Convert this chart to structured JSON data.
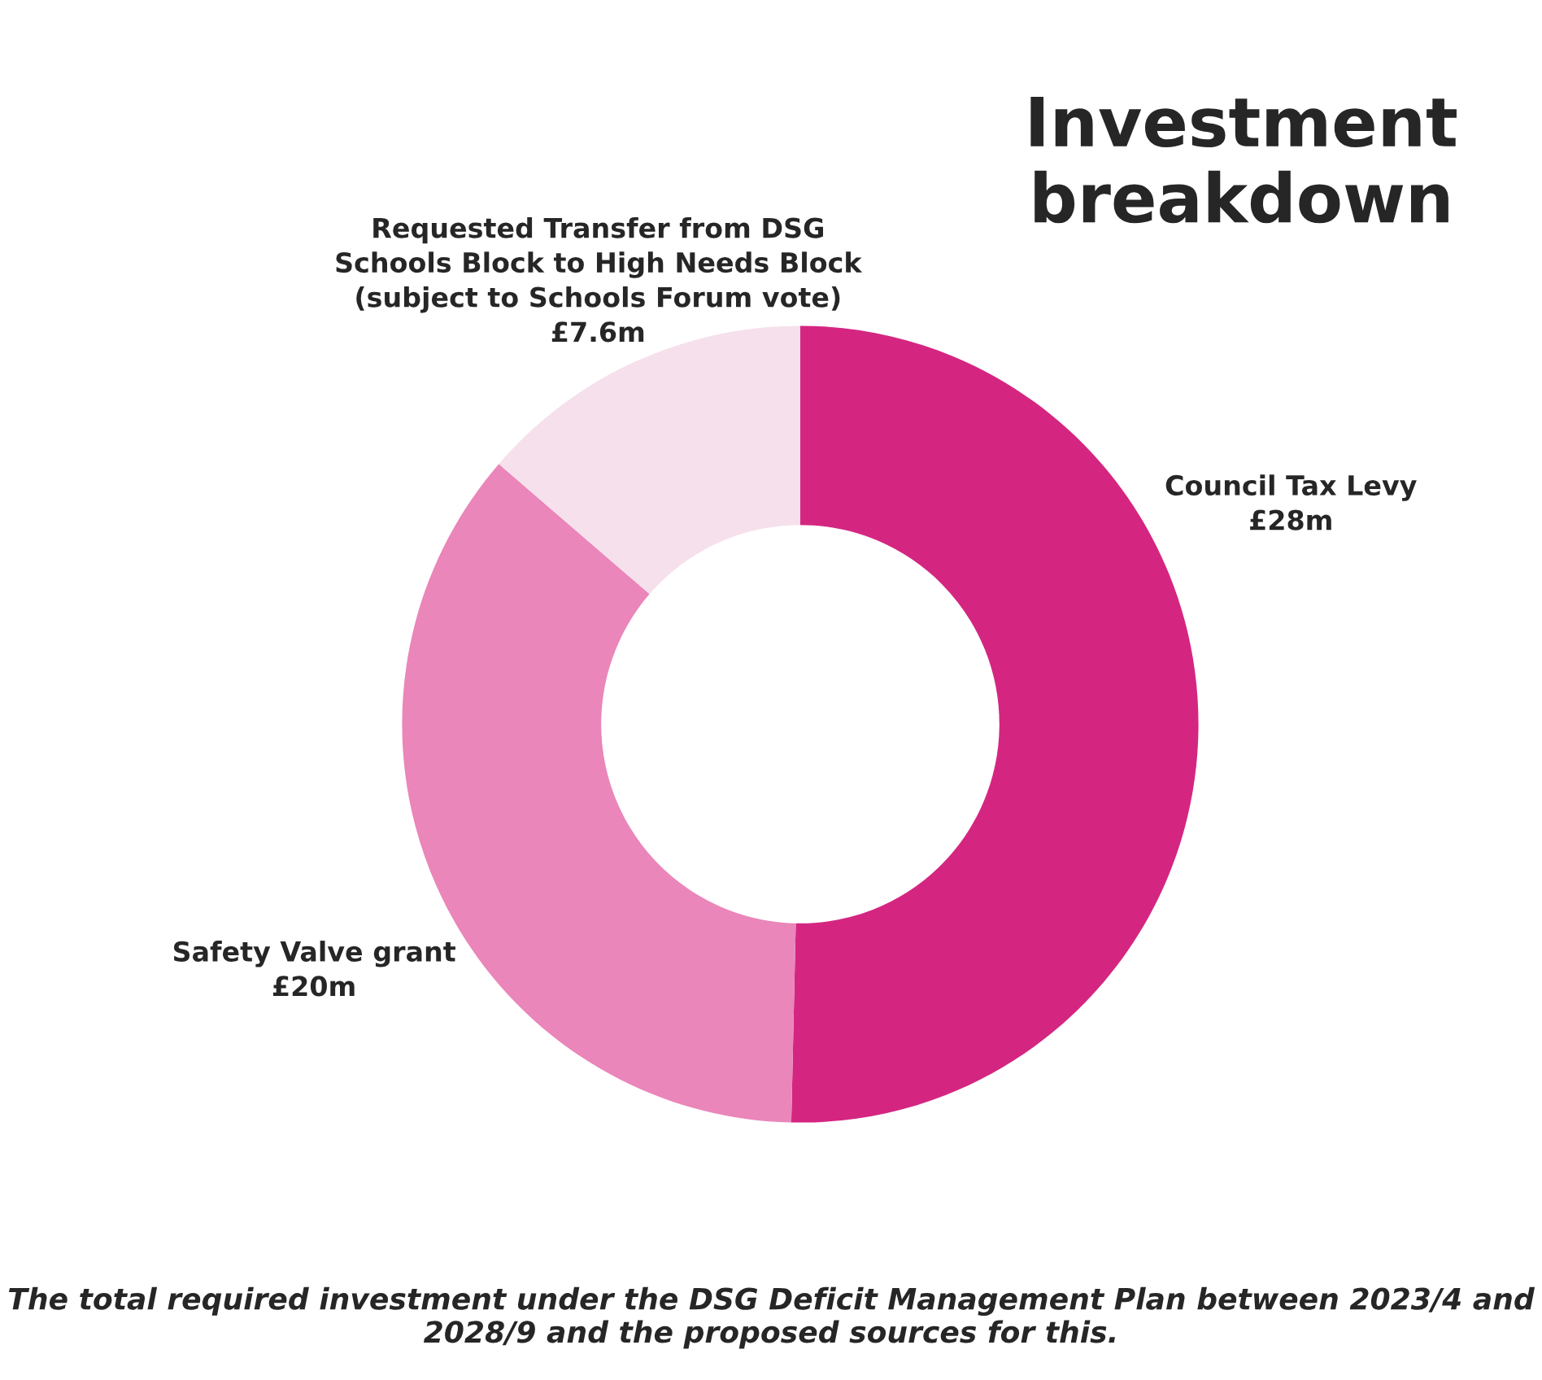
{
  "chart_data": {
    "type": "donut",
    "title": "Investment\nbreakdown",
    "categories": [
      "Council Tax Levy",
      "Safety Valve grant",
      "Requested Transfer from DSG\nSchools Block to High Needs Block\n(subject to Schools Forum vote)"
    ],
    "values": [
      28,
      20,
      7.6
    ],
    "value_labels": [
      "£28m",
      "£20m",
      "£7.6m"
    ],
    "colors": [
      "#d42681",
      "#ea86b9",
      "#f5e0eb"
    ],
    "annotations": [
      "The total required investment under the DSG Deficit Management Plan between 2023/4 and 2028/9 and the proposed sources for this."
    ],
    "legend": false
  }
}
